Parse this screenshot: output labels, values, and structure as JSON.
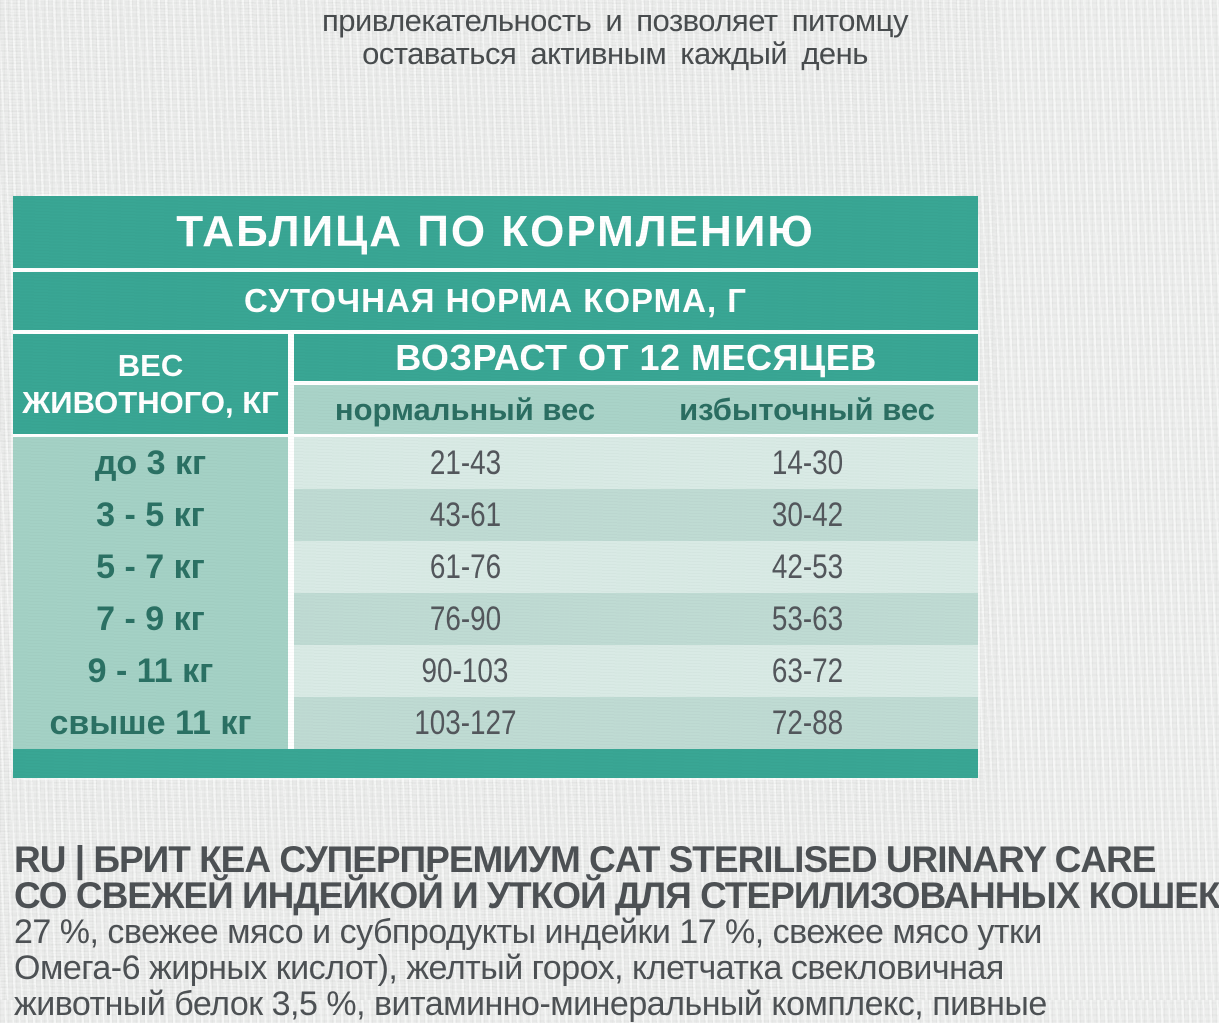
{
  "colors": {
    "teal_main": "#39a694",
    "subheader_bg": "#a9d3c8",
    "left_column_bg": "#a4d1c5",
    "row_light": "#d9eae5",
    "row_dark": "#bfdbd3",
    "dark_teal_text": "#2b6e62",
    "body_text": "#4d5154",
    "paper": "#ecedec"
  },
  "intro": {
    "line1": "привлекательность и позволяет питомцу",
    "line2": "оставаться активным каждый день"
  },
  "feeding_table": {
    "title": "ТАБЛИЦА ПО КОРМЛЕНИЮ",
    "subtitle": "СУТОЧНАЯ НОРМА КОРМА, Г",
    "weight_header": {
      "line1": "ВЕС",
      "line2": "ЖИВОТНОГО, КГ"
    },
    "age_group_header": "ВОЗРАСТ ОТ 12 МЕСЯЦЕВ",
    "sub_columns": {
      "normal": "нормальный вес",
      "overweight": "избыточный вес"
    },
    "rows": [
      {
        "weight": "до 3 кг",
        "normal": "21-43",
        "overweight": "14-30"
      },
      {
        "weight": "3 - 5 кг",
        "normal": "43-61",
        "overweight": "30-42"
      },
      {
        "weight": "5 - 7 кг",
        "normal": "61-76",
        "overweight": "42-53"
      },
      {
        "weight": "7 - 9 кг",
        "normal": "76-90",
        "overweight": "53-63"
      },
      {
        "weight": "9 - 11 кг",
        "normal": "90-103",
        "overweight": "63-72"
      },
      {
        "weight": "свыше 11 кг",
        "normal": "103-127",
        "overweight": "72-88"
      }
    ]
  },
  "description": {
    "line1": "RU | БРИТ КЕА СУПЕРПРЕМИУМ CAT STERILISED URINARY CARE",
    "line2": "СО СВЕЖЕЙ ИНДЕЙКОЙ И УТКОЙ ДЛЯ СТЕРИЛИЗОВАННЫХ КОШЕК",
    "line3": "27 %, свежее мясо и субпродукты индейки 17 %, свежее мясо утки",
    "line4": "Омега-6 жирных кислот), желтый горох, клетчатка свекловичная",
    "line5": "животный белок 3,5 %, витаминно-минеральный комплекс, пивные"
  }
}
